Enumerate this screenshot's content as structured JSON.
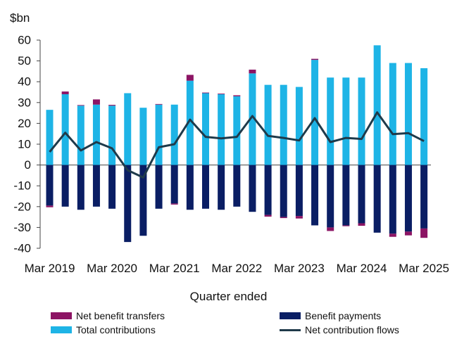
{
  "chart_data": {
    "type": "bar",
    "unit_label": "$bn",
    "xlabel": "Quarter ended",
    "ylim": [
      -40,
      60
    ],
    "yticks": [
      "60",
      "50",
      "40",
      "30",
      "20",
      "10",
      "0",
      "-10",
      "-20",
      "-30",
      "-40"
    ],
    "ytick_values": [
      60,
      50,
      40,
      30,
      20,
      10,
      0,
      -10,
      -20,
      -30,
      -40
    ],
    "x_tick_labels": [
      {
        "label": "Mar 2019",
        "index": 0
      },
      {
        "label": "Mar 2020",
        "index": 4
      },
      {
        "label": "Mar 2021",
        "index": 8
      },
      {
        "label": "Mar 2022",
        "index": 12
      },
      {
        "label": "Mar 2023",
        "index": 16
      },
      {
        "label": "Mar 2024",
        "index": 20
      },
      {
        "label": "Mar 2025",
        "index": 24
      }
    ],
    "series": [
      {
        "name": "Total contributions",
        "color": "#1eb4e6",
        "values": [
          26.5,
          34,
          28.5,
          29,
          28.5,
          34.5,
          27.5,
          29,
          29,
          40.5,
          34.5,
          34,
          33,
          44,
          38.5,
          38.5,
          37.5,
          50.5,
          42,
          42,
          42,
          57.5,
          49,
          49,
          46.5
        ]
      },
      {
        "name": "Benefit payments",
        "color": "#0a1e64",
        "values": [
          -19.5,
          -20,
          -21.5,
          -20,
          -21,
          -37,
          -34,
          -21,
          -18.5,
          -21.5,
          -21,
          -21.5,
          -20,
          -22.5,
          -24,
          -25,
          -24.5,
          -29,
          -30,
          -29,
          -28,
          -32.5,
          -33,
          -32,
          -30.5
        ]
      },
      {
        "name": "Net benefit transfers",
        "color": "#8c1464",
        "values": [
          -0.8,
          1.3,
          0.3,
          2.5,
          0.4,
          0,
          0,
          0.3,
          -0.5,
          2.8,
          0.3,
          0.3,
          0.5,
          1.8,
          -0.8,
          -0.5,
          -1.2,
          0.5,
          -1.7,
          -0.4,
          -1.2,
          0,
          -1.5,
          -1.8,
          -4.5
        ]
      },
      {
        "name": "Net contribution flows",
        "color": "#1f3a4a",
        "type": "line",
        "values": [
          6.3,
          15.5,
          7,
          11,
          8,
          -2.5,
          -6,
          8.5,
          10,
          21.8,
          13.5,
          12.8,
          13.5,
          23.5,
          14,
          13,
          11.8,
          22.5,
          11,
          13,
          12.5,
          25.3,
          14.8,
          15.3,
          11.5
        ]
      }
    ],
    "legend": [
      {
        "name": "Net benefit transfers",
        "kind": "bar",
        "color": "#8c1464"
      },
      {
        "name": "Benefit payments",
        "kind": "bar",
        "color": "#0a1e64"
      },
      {
        "name": "Total contributions",
        "kind": "bar",
        "color": "#1eb4e6"
      },
      {
        "name": "Net contribution flows",
        "kind": "line",
        "color": "#1f3a4a"
      }
    ],
    "legend_position": "bottom"
  }
}
